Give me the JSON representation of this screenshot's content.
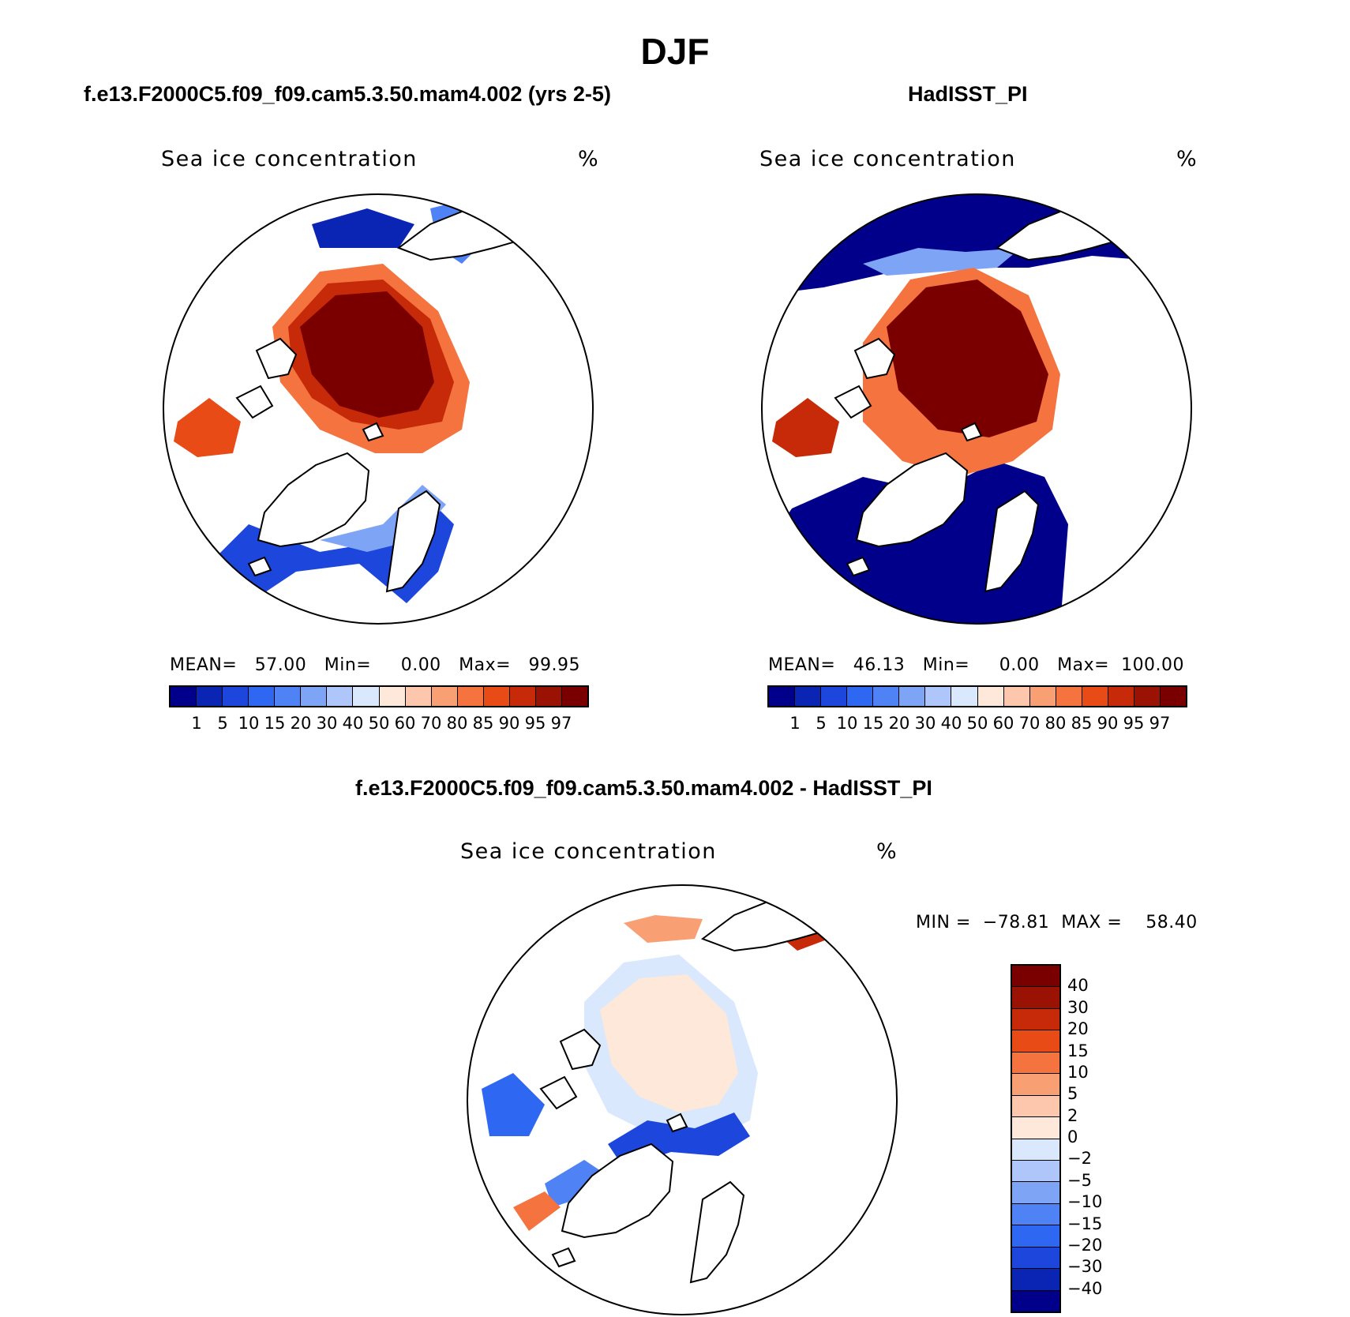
{
  "figure": {
    "title": "DJF",
    "colors": {
      "levels_scale": [
        "#00008b",
        "#0a24b4",
        "#1c46dc",
        "#2e68f2",
        "#4f82f5",
        "#7ea4f6",
        "#afc6fa",
        "#d9e8fc",
        "#fde8da",
        "#fcc7ac",
        "#f99f74",
        "#f4733f",
        "#e94b17",
        "#c72a08",
        "#9a1204",
        "#7a0000"
      ],
      "diff_scale": [
        "#00008b",
        "#0a24b4",
        "#1c46dc",
        "#2e68f2",
        "#4f82f5",
        "#7ea4f6",
        "#afc6fa",
        "#d9e8fc",
        "#fde8da",
        "#fcc7ac",
        "#f99f74",
        "#f4733f",
        "#e94b17",
        "#c72a08",
        "#9a1204",
        "#7a0000"
      ],
      "land": "#ffffff",
      "coast": "#000000"
    }
  },
  "panels": {
    "model": {
      "title": "f.e13.F2000C5.f09_f09.cam5.3.50.mam4.002 (yrs 2-5)",
      "variable": "Sea ice concentration",
      "units": "%",
      "stats": "MEAN=   57.00   Min=     0.00   Max=   99.95",
      "mean": 57.0,
      "min": 0.0,
      "max": 99.95
    },
    "obs": {
      "title": "HadISST_PI",
      "variable": "Sea ice concentration",
      "units": "%",
      "stats": "MEAN=   46.13   Min=     0.00   Max=  100.00",
      "mean": 46.13,
      "min": 0.0,
      "max": 100.0
    },
    "diff": {
      "title": "f.e13.F2000C5.f09_f09.cam5.3.50.mam4.002 - HadISST_PI",
      "variable": "Sea ice concentration",
      "units": "%",
      "stats": "MIN =  −78.81  MAX =    58.40",
      "min": -78.81,
      "max": 58.4
    }
  },
  "chart_data": {
    "type": "heatmap",
    "projection": "north polar stereographic",
    "season": "DJF",
    "level_colorbar": {
      "ticks": [
        "1",
        "5",
        "10",
        "15",
        "20",
        "30",
        "40",
        "50",
        "60",
        "70",
        "80",
        "85",
        "90",
        "95",
        "97"
      ],
      "values": [
        1,
        5,
        10,
        15,
        20,
        30,
        40,
        50,
        60,
        70,
        80,
        85,
        90,
        95,
        97
      ]
    },
    "diff_colorbar": {
      "ticks": [
        "40",
        "30",
        "20",
        "15",
        "10",
        "5",
        "2",
        "0",
        "−2",
        "−5",
        "−10",
        "−15",
        "−20",
        "−30",
        "−40"
      ],
      "values": [
        40,
        30,
        20,
        15,
        10,
        5,
        2,
        0,
        -2,
        -5,
        -10,
        -15,
        -20,
        -30,
        -40
      ]
    }
  }
}
